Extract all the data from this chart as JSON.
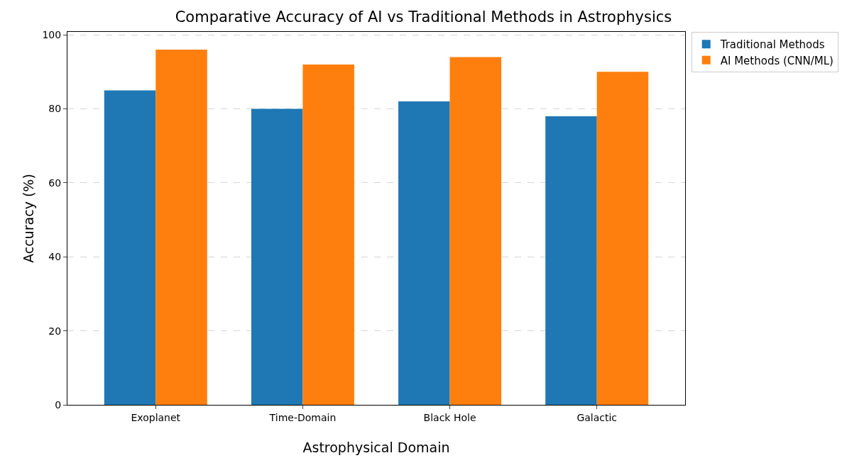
{
  "chart_data": {
    "type": "bar",
    "title": "Comparative Accuracy of AI vs Traditional Methods in Astrophysics",
    "xlabel": "Astrophysical Domain",
    "ylabel": "Accuracy (%)",
    "categories": [
      "Exoplanet",
      "Time-Domain",
      "Black Hole",
      "Galactic"
    ],
    "series": [
      {
        "name": "Traditional Methods",
        "color": "#1f77b4",
        "values": [
          85,
          80,
          82,
          78
        ]
      },
      {
        "name": "AI Methods (CNN/ML)",
        "color": "#ff7f0e",
        "values": [
          96,
          92,
          94,
          90
        ]
      }
    ],
    "ylim": [
      0,
      100.8
    ],
    "yticks": [
      0,
      20,
      40,
      60,
      80,
      100
    ],
    "grid": "y",
    "legend": "top right"
  }
}
